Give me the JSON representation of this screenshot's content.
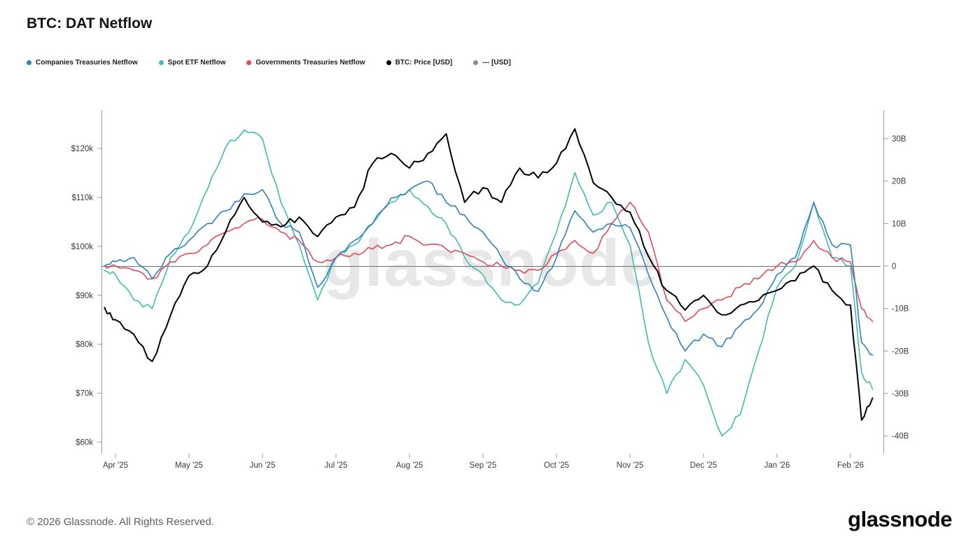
{
  "header": {
    "title": "BTC: DAT Netflow"
  },
  "watermark": "glassnode",
  "footer": {
    "copyright": "© 2026 Glassnode. All Rights Reserved.",
    "logo_text": "glassnode"
  },
  "chart_data": {
    "type": "line",
    "title": "BTC: DAT Netflow",
    "legend_position": "top-left",
    "grid": false,
    "x_unit": "months since Apr 2025",
    "x_axis": {
      "tick_labels": [
        "Apr '25",
        "May '25",
        "Jun '25",
        "Jul '25",
        "Aug '25",
        "Sep '25",
        "Oct '25",
        "Nov '25",
        "Dec '25",
        "Jan '26",
        "Feb '26"
      ],
      "tick_positions_months": [
        0,
        1,
        2,
        3,
        4,
        5,
        6,
        7,
        8,
        9,
        10
      ]
    },
    "left_y_axis": {
      "title": "BTC price (USD)",
      "tick_labels": [
        "$60k",
        "$70k",
        "$80k",
        "$90k",
        "$100k",
        "$110k",
        "$120k"
      ],
      "tick_values_k": [
        60,
        70,
        80,
        90,
        100,
        110,
        120
      ],
      "range_k": [
        58,
        127
      ]
    },
    "right_y_axis": {
      "title": "Netflow (USD)",
      "tick_labels": [
        "-40B",
        "-30B",
        "-20B",
        "-10B",
        "0",
        "10B",
        "20B",
        "30B"
      ],
      "tick_values_B": [
        -40,
        -30,
        -20,
        -10,
        0,
        10,
        20,
        30
      ],
      "range_B": [
        -43,
        33
      ]
    },
    "x": [
      -0.15,
      0,
      0.25,
      0.5,
      0.75,
      1,
      1.25,
      1.5,
      1.75,
      2,
      2.25,
      2.5,
      2.75,
      3,
      3.25,
      3.5,
      3.75,
      4,
      4.25,
      4.5,
      4.75,
      5,
      5.25,
      5.5,
      5.75,
      6,
      6.25,
      6.5,
      6.75,
      7,
      7.25,
      7.5,
      7.75,
      8,
      8.25,
      8.5,
      8.75,
      9,
      9.25,
      9.5,
      9.75,
      10,
      10.15,
      10.3
    ],
    "series": [
      {
        "name": "Companies Treasuries Netflow",
        "color": "#2f7fba",
        "axis": "right",
        "unit": "B USD",
        "values": [
          0,
          1,
          2,
          -3,
          3,
          6,
          10,
          13,
          17,
          18,
          10,
          8,
          -5,
          2,
          6,
          10,
          16,
          18,
          20,
          15,
          12,
          8,
          2,
          -3,
          -6,
          2,
          13,
          8,
          10,
          9,
          -2,
          -12,
          -20,
          -16,
          -19,
          -14,
          -10,
          -2,
          2,
          15,
          5,
          5,
          -18,
          -21
        ]
      },
      {
        "name": "Spot ETF Netflow",
        "color": "#3dbdae",
        "axis": "right",
        "unit": "B USD",
        "values": [
          -1,
          -2,
          -8,
          -10,
          2,
          8,
          18,
          28,
          32,
          30,
          15,
          5,
          -8,
          2,
          5,
          10,
          15,
          18,
          14,
          10,
          2,
          -2,
          -8,
          -9,
          -4,
          8,
          22,
          12,
          15,
          5,
          -18,
          -30,
          -22,
          -28,
          -40,
          -35,
          -20,
          -5,
          0,
          15,
          2,
          0,
          -25,
          -29
        ]
      },
      {
        "name": "Governments Treasuries Netflow",
        "color": "#e2495a",
        "axis": "right",
        "unit": "B USD",
        "values": [
          0,
          0,
          -1,
          -3,
          1,
          3,
          5,
          8,
          10,
          11,
          8,
          6,
          1,
          2,
          3,
          4,
          5,
          7,
          5,
          4,
          3,
          1,
          0,
          -1,
          -1,
          3,
          6,
          3,
          10,
          15,
          8,
          -8,
          -13,
          -10,
          -8,
          -5,
          -3,
          0,
          1,
          6,
          2,
          1,
          -10,
          -13
        ]
      },
      {
        "name": "BTC: Price [USD]",
        "color": "#000000",
        "axis": "left",
        "unit": "k USD",
        "values": [
          87.5,
          85,
          82,
          76.5,
          86,
          94,
          96,
          103,
          110,
          105,
          104,
          106,
          102,
          106,
          108,
          117,
          119,
          116,
          119,
          123,
          109,
          112,
          109,
          116,
          114,
          117,
          124,
          113,
          110,
          107,
          98,
          91,
          87,
          90,
          86,
          88,
          89,
          91,
          93,
          96,
          91,
          88,
          64.5,
          69
        ]
      },
      {
        "name": "--- [USD]",
        "color": "#8c8c8c",
        "axis": "right",
        "unit": "B USD",
        "style": "zero-line",
        "constant_value": 0
      }
    ]
  }
}
